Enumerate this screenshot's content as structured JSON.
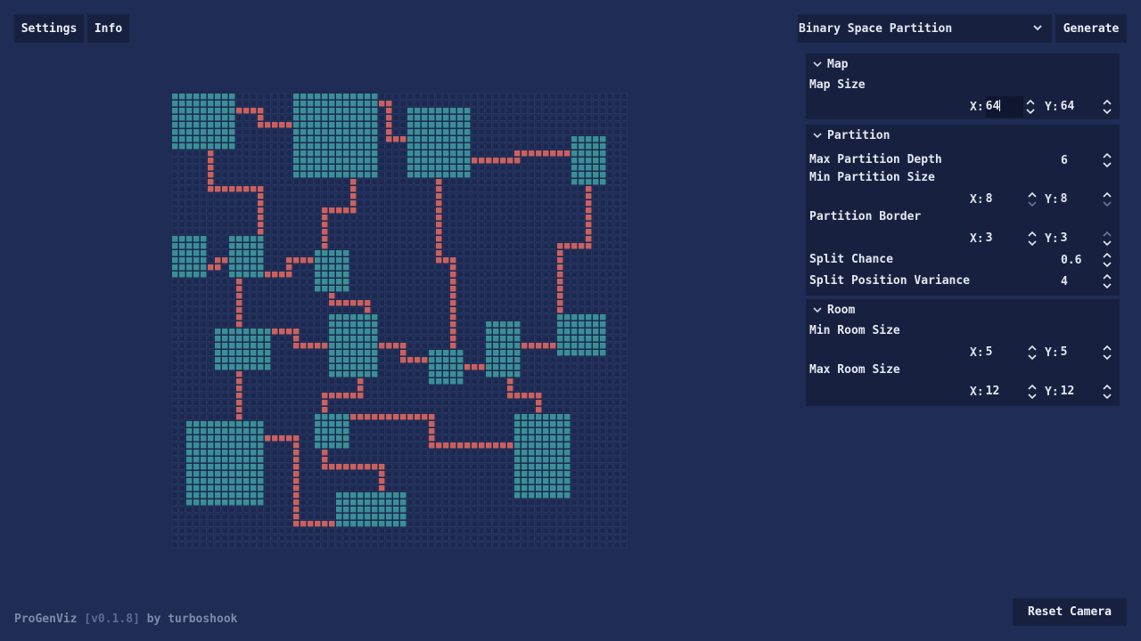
{
  "toolbar": {
    "settings_label": "Settings",
    "info_label": "Info",
    "algorithm_selected": "Binary Space Partition",
    "generate_label": "Generate",
    "reset_camera_label": "Reset Camera"
  },
  "footer": {
    "app": "ProGenViz",
    "version": "[v0.1.8]",
    "by": "by turboshook"
  },
  "map_panel": {
    "title": "Map",
    "map_size_label": "Map Size",
    "size_x": "64",
    "size_y": "64",
    "axis_x": "X:",
    "axis_y": "Y:"
  },
  "partition_panel": {
    "title": "Partition",
    "max_depth_label": "Max Partition Depth",
    "max_depth": "6",
    "min_size_label": "Min Partition Size",
    "min_size_x": "8",
    "min_size_y": "8",
    "border_label": "Partition Border",
    "border_x": "3",
    "border_y": "3",
    "split_chance_label": "Split Chance",
    "split_chance": "0.6",
    "split_variance_label": "Split Position Variance",
    "split_variance": "4"
  },
  "room_panel": {
    "title": "Room",
    "min_room_label": "Min Room Size",
    "min_room_x": "5",
    "min_room_y": "5",
    "max_room_label": "Max Room Size",
    "max_room_x": "12",
    "max_room_y": "12"
  },
  "colors": {
    "background": "#1f2c55",
    "panel": "#17213f",
    "grid_empty": "#2a3a66",
    "room": "#3a8f96",
    "corridor": "#c9615f"
  },
  "dungeon": {
    "grid_cols": 64,
    "grid_rows": 64,
    "rooms": [
      [
        0,
        0,
        9,
        8
      ],
      [
        17,
        0,
        12,
        12
      ],
      [
        33,
        2,
        9,
        10
      ],
      [
        56,
        6,
        5,
        7
      ],
      [
        0,
        20,
        5,
        6
      ],
      [
        8,
        20,
        5,
        6
      ],
      [
        20,
        22,
        5,
        6
      ],
      [
        6,
        33,
        8,
        6
      ],
      [
        22,
        31,
        7,
        9
      ],
      [
        36,
        36,
        5,
        5
      ],
      [
        44,
        32,
        5,
        8
      ],
      [
        54,
        31,
        7,
        6
      ],
      [
        2,
        46,
        11,
        12
      ],
      [
        20,
        45,
        5,
        5
      ],
      [
        48,
        45,
        8,
        12
      ],
      [
        23,
        56,
        10,
        5
      ]
    ],
    "corridors": [
      [
        [
          9,
          2
        ],
        [
          12,
          2
        ],
        [
          12,
          4
        ],
        [
          17,
          4
        ]
      ],
      [
        [
          29,
          1
        ],
        [
          30,
          1
        ],
        [
          30,
          6
        ],
        [
          33,
          6
        ]
      ],
      [
        [
          42,
          9
        ],
        [
          48,
          9
        ],
        [
          48,
          8
        ],
        [
          56,
          8
        ]
      ],
      [
        [
          5,
          8
        ],
        [
          5,
          13
        ],
        [
          12,
          13
        ],
        [
          12,
          20
        ]
      ],
      [
        [
          25,
          12
        ],
        [
          25,
          16
        ],
        [
          21,
          16
        ],
        [
          21,
          22
        ]
      ],
      [
        [
          37,
          12
        ],
        [
          37,
          23
        ],
        [
          39,
          23
        ],
        [
          39,
          36
        ]
      ],
      [
        [
          58,
          13
        ],
        [
          58,
          21
        ],
        [
          54,
          21
        ],
        [
          54,
          31
        ]
      ],
      [
        [
          5,
          24
        ],
        [
          6,
          24
        ],
        [
          6,
          23
        ],
        [
          8,
          23
        ]
      ],
      [
        [
          13,
          25
        ],
        [
          16,
          25
        ],
        [
          16,
          23
        ],
        [
          20,
          23
        ]
      ],
      [
        [
          22,
          28
        ],
        [
          22,
          29
        ],
        [
          27,
          29
        ],
        [
          27,
          31
        ]
      ],
      [
        [
          9,
          26
        ],
        [
          9,
          33
        ]
      ],
      [
        [
          14,
          33
        ],
        [
          17,
          33
        ],
        [
          17,
          35
        ],
        [
          22,
          35
        ]
      ],
      [
        [
          29,
          35
        ],
        [
          32,
          35
        ],
        [
          32,
          37
        ],
        [
          36,
          37
        ]
      ],
      [
        [
          41,
          38
        ],
        [
          44,
          38
        ]
      ],
      [
        [
          49,
          35
        ],
        [
          54,
          35
        ]
      ],
      [
        [
          9,
          39
        ],
        [
          9,
          46
        ]
      ],
      [
        [
          26,
          40
        ],
        [
          26,
          42
        ],
        [
          21,
          42
        ],
        [
          21,
          45
        ]
      ],
      [
        [
          47,
          40
        ],
        [
          47,
          42
        ],
        [
          51,
          42
        ],
        [
          51,
          45
        ]
      ],
      [
        [
          25,
          45
        ],
        [
          36,
          45
        ],
        [
          36,
          49
        ],
        [
          48,
          49
        ]
      ],
      [
        [
          21,
          50
        ],
        [
          21,
          52
        ],
        [
          29,
          52
        ],
        [
          29,
          55
        ]
      ],
      [
        [
          13,
          48
        ],
        [
          17,
          48
        ],
        [
          17,
          60
        ],
        [
          23,
          60
        ]
      ]
    ]
  }
}
